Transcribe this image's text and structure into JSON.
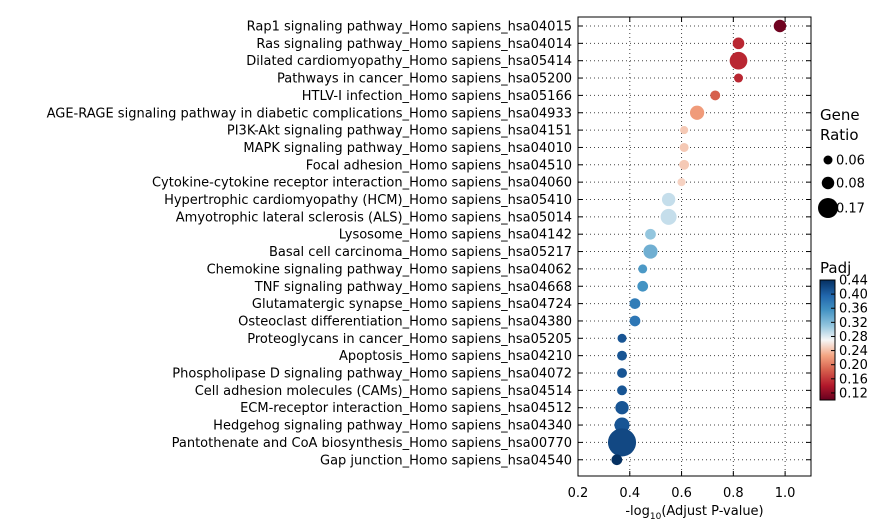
{
  "chart_data": {
    "type": "scatter",
    "xlabel": "-log10(Adjust P-value)",
    "xlabel_parts": {
      "before": "-log",
      "sub": "10",
      "after": "(Adjust P-value)"
    },
    "xlim": [
      0.2,
      1.1
    ],
    "xticks": [
      "0.2",
      "0.4",
      "0.6",
      "0.8",
      "1.0"
    ],
    "grid": true,
    "legend_placement": "right",
    "color_scale": "RdBu",
    "size_legend": {
      "title_lines": [
        "Gene",
        "Ratio"
      ],
      "entries": [
        {
          "label": "0.06",
          "value": 0.06
        },
        {
          "label": "0.08",
          "value": 0.08
        },
        {
          "label": "0.17",
          "value": 0.17
        }
      ]
    },
    "color_legend": {
      "title": "Padj",
      "ticks": [
        "0.44",
        "0.40",
        "0.36",
        "0.32",
        "0.28",
        "0.24",
        "0.20",
        "0.16",
        "0.12"
      ],
      "range": [
        0.1,
        0.44
      ]
    },
    "points": [
      {
        "term": "Rap1 signaling pathway_Homo sapiens_hsa04015",
        "x": 0.98,
        "padj": 0.105,
        "ratio": 0.08
      },
      {
        "term": "Ras signaling pathway_Homo sapiens_hsa04014",
        "x": 0.82,
        "padj": 0.15,
        "ratio": 0.075
      },
      {
        "term": "Dilated cardiomyopathy_Homo sapiens_hsa05414",
        "x": 0.82,
        "padj": 0.15,
        "ratio": 0.11
      },
      {
        "term": "Pathways in cancer_Homo sapiens_hsa05200",
        "x": 0.82,
        "padj": 0.15,
        "ratio": 0.06
      },
      {
        "term": "HTLV-I infection_Homo sapiens_hsa05166",
        "x": 0.73,
        "padj": 0.185,
        "ratio": 0.065
      },
      {
        "term": "AGE-RAGE signaling pathway in diabetic complications_Homo sapiens_hsa04933",
        "x": 0.66,
        "padj": 0.22,
        "ratio": 0.09
      },
      {
        "term": "PI3K-Akt signaling pathway_Homo sapiens_hsa04151",
        "x": 0.61,
        "padj": 0.245,
        "ratio": 0.055
      },
      {
        "term": "MAPK signaling pathway_Homo sapiens_hsa04010",
        "x": 0.61,
        "padj": 0.245,
        "ratio": 0.06
      },
      {
        "term": "Focal adhesion_Homo sapiens_hsa04510",
        "x": 0.61,
        "padj": 0.245,
        "ratio": 0.065
      },
      {
        "term": "Cytokine-cytokine receptor interaction_Homo sapiens_hsa04060",
        "x": 0.6,
        "padj": 0.25,
        "ratio": 0.055
      },
      {
        "term": "Hypertrophic cardiomyopathy (HCM)_Homo sapiens_hsa05410",
        "x": 0.55,
        "padj": 0.29,
        "ratio": 0.085
      },
      {
        "term": "Amyotrophic lateral sclerosis (ALS)_Homo sapiens_hsa05014",
        "x": 0.55,
        "padj": 0.29,
        "ratio": 0.1
      },
      {
        "term": "Lysosome_Homo sapiens_hsa04142",
        "x": 0.48,
        "padj": 0.31,
        "ratio": 0.07
      },
      {
        "term": "Basal cell carcinoma_Homo sapiens_hsa05217",
        "x": 0.48,
        "padj": 0.33,
        "ratio": 0.09
      },
      {
        "term": "Chemokine signaling pathway_Homo sapiens_hsa04062",
        "x": 0.45,
        "padj": 0.35,
        "ratio": 0.06
      },
      {
        "term": "TNF signaling pathway_Homo sapiens_hsa04668",
        "x": 0.45,
        "padj": 0.355,
        "ratio": 0.07
      },
      {
        "term": "Glutamatergic synapse_Homo sapiens_hsa04724",
        "x": 0.42,
        "padj": 0.375,
        "ratio": 0.07
      },
      {
        "term": "Osteoclast differentiation_Homo sapiens_hsa04380",
        "x": 0.42,
        "padj": 0.38,
        "ratio": 0.07
      },
      {
        "term": "Proteoglycans in cancer_Homo sapiens_hsa05205",
        "x": 0.37,
        "padj": 0.41,
        "ratio": 0.06
      },
      {
        "term": "Apoptosis_Homo sapiens_hsa04210",
        "x": 0.37,
        "padj": 0.41,
        "ratio": 0.065
      },
      {
        "term": "Phospholipase D signaling pathway_Homo sapiens_hsa04072",
        "x": 0.37,
        "padj": 0.41,
        "ratio": 0.065
      },
      {
        "term": "Cell adhesion molecules (CAMs)_Homo sapiens_hsa04514",
        "x": 0.37,
        "padj": 0.41,
        "ratio": 0.065
      },
      {
        "term": "ECM-receptor interaction_Homo sapiens_hsa04512",
        "x": 0.37,
        "padj": 0.41,
        "ratio": 0.085
      },
      {
        "term": "Hedgehog signaling pathway_Homo sapiens_hsa04340",
        "x": 0.37,
        "padj": 0.41,
        "ratio": 0.095
      },
      {
        "term": "Pantothenate and CoA biosynthesis_Homo sapiens_hsa00770",
        "x": 0.37,
        "padj": 0.42,
        "ratio": 0.17
      },
      {
        "term": "Gap junction_Homo sapiens_hsa04540",
        "x": 0.35,
        "padj": 0.44,
        "ratio": 0.07
      }
    ]
  }
}
